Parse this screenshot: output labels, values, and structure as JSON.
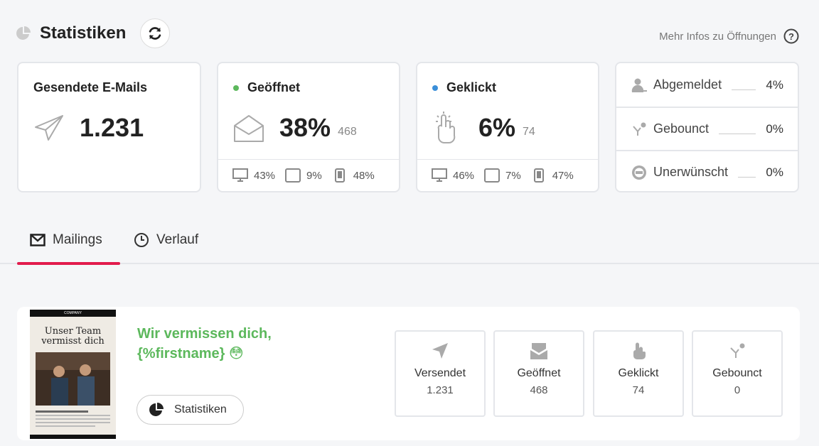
{
  "header": {
    "title": "Statistiken",
    "more_info": "Mehr Infos zu Öffnungen"
  },
  "cards": {
    "sent": {
      "label": "Gesendete E-Mails",
      "value": "1.231"
    },
    "opened": {
      "label": "Geöffnet",
      "value": "38%",
      "count": "468",
      "dot_color": "#5cb85c",
      "devices": {
        "desktop": "43%",
        "tablet": "9%",
        "mobile": "48%"
      }
    },
    "clicked": {
      "label": "Geklickt",
      "value": "6%",
      "count": "74",
      "dot_color": "#3b8fd9",
      "devices": {
        "desktop": "46%",
        "tablet": "7%",
        "mobile": "47%"
      }
    },
    "other": [
      {
        "label": "Abgemeldet",
        "value": "4%",
        "icon": "user-minus-icon"
      },
      {
        "label": "Gebounct",
        "value": "0%",
        "icon": "bounce-icon"
      },
      {
        "label": "Unerwünscht",
        "value": "0%",
        "icon": "spam-icon"
      }
    ]
  },
  "tabs": [
    {
      "label": "Mailings",
      "icon": "envelope-icon",
      "active": true
    },
    {
      "label": "Verlauf",
      "icon": "clock-icon",
      "active": false
    }
  ],
  "mailing": {
    "title_line1": "Wir vermissen dich,",
    "title_line2": "{%firstname} 😳",
    "button_label": "Statistiken",
    "thumb": {
      "header": "Unser Team vermisst dich",
      "brand": "COMPANY"
    },
    "stats": [
      {
        "label": "Versendet",
        "value": "1.231",
        "icon": "send-icon"
      },
      {
        "label": "Geöffnet",
        "value": "468",
        "icon": "open-envelope-icon"
      },
      {
        "label": "Geklickt",
        "value": "74",
        "icon": "click-icon"
      },
      {
        "label": "Gebounct",
        "value": "0",
        "icon": "bounce-icon"
      }
    ]
  },
  "colors": {
    "accent": "#e21b4c",
    "green": "#5cb85c",
    "blue": "#3b8fd9"
  }
}
